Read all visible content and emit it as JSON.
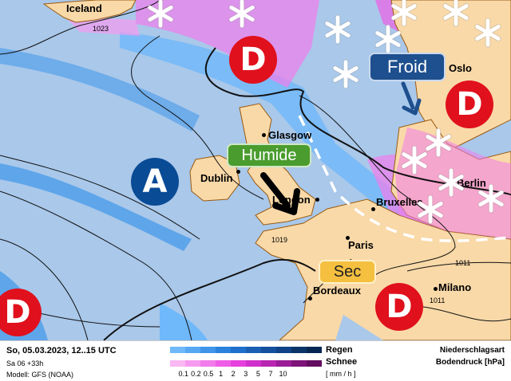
{
  "map": {
    "cities": [
      "Iceland",
      "Glasgow",
      "Dublin",
      "London",
      "Bruxelles",
      "Paris",
      "Bordeaux",
      "Milano",
      "Berlin",
      "Oslo"
    ],
    "isobars": [
      "1023",
      "1019",
      "1011",
      "1011"
    ],
    "pressure_systems": {
      "low": "D",
      "high": "A"
    },
    "badges": {
      "humid": "Humide",
      "cold": "Froid",
      "dry": "Sec"
    },
    "colors": {
      "sea": "#a9c8ea",
      "land": "#f9d9a8",
      "low": "#e0101c",
      "high": "#0a4b96",
      "humid": "#4a9c2e",
      "cold": "#1e4f8e",
      "dry": "#f5c040"
    }
  },
  "legend": {
    "date": "So, 05.03.2023, 12..15 UTC",
    "run": "Sa 06 +33h",
    "model": "Modell: GFS (NOAA)",
    "rain_label": "Regen",
    "snow_label": "Schnee",
    "unit": "[ mm / h ]",
    "ticks": [
      "0.1",
      "0.2",
      "0.5",
      "1",
      "2",
      "3",
      "5",
      "7",
      "10"
    ],
    "title1": "Niederschlagsart",
    "title2": "Bodendruck [hPa]",
    "rain_colors": [
      "#6fb8fa",
      "#56a8f2",
      "#3e95ea",
      "#2a82de",
      "#1e70cc",
      "#1a5fb4",
      "#14509e",
      "#0f4288",
      "#0a3468",
      "#062653"
    ],
    "snow_colors": [
      "#f9b8f3",
      "#f69aef",
      "#f27ceb",
      "#ee5ee6",
      "#e640de",
      "#d030cb",
      "#b826b2",
      "#9a1c96",
      "#7e137a",
      "#640c60"
    ]
  }
}
